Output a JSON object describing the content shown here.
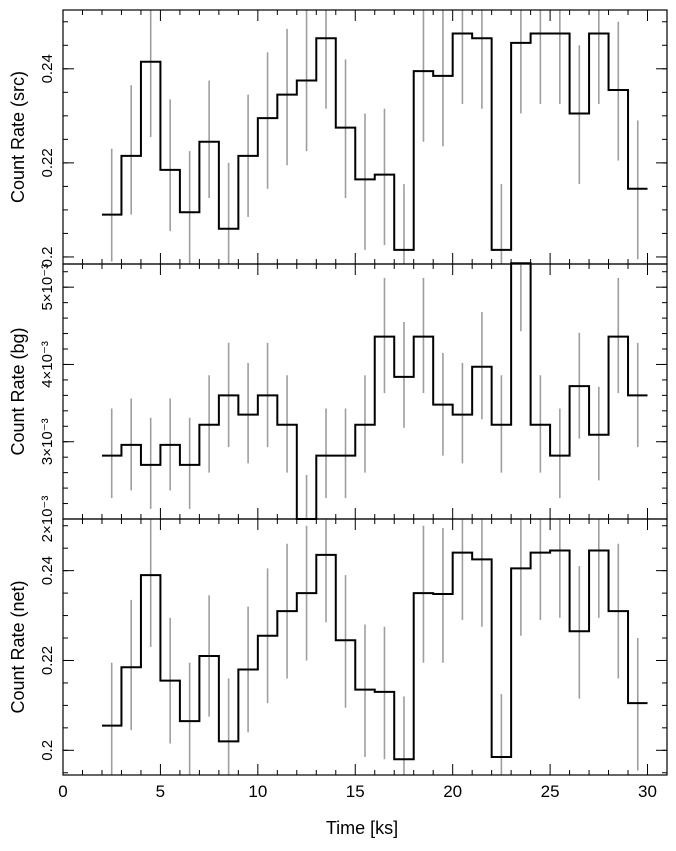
{
  "chart_data": {
    "type": "line",
    "x_axis": {
      "label": "Time [ks]",
      "range": [
        0,
        31
      ],
      "ticks": [
        0,
        5,
        10,
        15,
        20,
        25,
        30
      ],
      "minor_step": 1
    },
    "panels": [
      {
        "name": "src",
        "ylabel": "Count Rate (src)",
        "ylim": [
          0.1985,
          0.2525
        ],
        "ticks": [
          {
            "value": 0.2,
            "label": "0.2"
          },
          {
            "value": 0.22,
            "label": "0.22"
          },
          {
            "value": 0.24,
            "label": "0.24"
          }
        ],
        "minor_step": 0.005,
        "bins": [
          {
            "x0": 2.0,
            "x1": 3.0,
            "y": 0.209,
            "lo": 0.199,
            "hi": 0.223
          },
          {
            "x0": 3.0,
            "x1": 4.0,
            "y": 0.2215,
            "lo": 0.209,
            "hi": 0.2365
          },
          {
            "x0": 4.0,
            "x1": 5.0,
            "y": 0.2415,
            "lo": 0.2255,
            "hi": 0.2525
          },
          {
            "x0": 5.0,
            "x1": 6.0,
            "y": 0.2185,
            "lo": 0.2055,
            "hi": 0.2335
          },
          {
            "x0": 6.0,
            "x1": 7.0,
            "y": 0.2095,
            "lo": 0.1985,
            "hi": 0.2225
          },
          {
            "x0": 7.0,
            "x1": 8.0,
            "y": 0.2245,
            "lo": 0.2125,
            "hi": 0.2375
          },
          {
            "x0": 8.0,
            "x1": 9.0,
            "y": 0.206,
            "lo": 0.1985,
            "hi": 0.22
          },
          {
            "x0": 9.0,
            "x1": 10.0,
            "y": 0.2215,
            "lo": 0.2085,
            "hi": 0.2345
          },
          {
            "x0": 10.0,
            "x1": 11.0,
            "y": 0.2295,
            "lo": 0.2145,
            "hi": 0.2435
          },
          {
            "x0": 11.0,
            "x1": 12.0,
            "y": 0.2345,
            "lo": 0.2195,
            "hi": 0.2485
          },
          {
            "x0": 12.0,
            "x1": 13.0,
            "y": 0.2375,
            "lo": 0.2225,
            "hi": 0.2525
          },
          {
            "x0": 13.0,
            "x1": 14.0,
            "y": 0.2465,
            "lo": 0.2315,
            "hi": 0.2525
          },
          {
            "x0": 14.0,
            "x1": 15.0,
            "y": 0.2275,
            "lo": 0.2125,
            "hi": 0.242
          },
          {
            "x0": 15.0,
            "x1": 16.0,
            "y": 0.2165,
            "lo": 0.2015,
            "hi": 0.2305
          },
          {
            "x0": 16.0,
            "x1": 17.0,
            "y": 0.2175,
            "lo": 0.2025,
            "hi": 0.2315
          },
          {
            "x0": 17.0,
            "x1": 18.0,
            "y": 0.2015,
            "lo": 0.1985,
            "hi": 0.2155
          },
          {
            "x0": 18.0,
            "x1": 19.0,
            "y": 0.2395,
            "lo": 0.2245,
            "hi": 0.2525
          },
          {
            "x0": 19.0,
            "x1": 20.0,
            "y": 0.2385,
            "lo": 0.2235,
            "hi": 0.2525
          },
          {
            "x0": 20.0,
            "x1": 21.0,
            "y": 0.2475,
            "lo": 0.2325,
            "hi": 0.2525
          },
          {
            "x0": 21.0,
            "x1": 22.0,
            "y": 0.2465,
            "lo": 0.2315,
            "hi": 0.2525
          },
          {
            "x0": 22.0,
            "x1": 23.0,
            "y": 0.2015,
            "lo": 0.1985,
            "hi": 0.2155
          },
          {
            "x0": 23.0,
            "x1": 24.0,
            "y": 0.2455,
            "lo": 0.2305,
            "hi": 0.2525
          },
          {
            "x0": 24.0,
            "x1": 25.0,
            "y": 0.2475,
            "lo": 0.2325,
            "hi": 0.2525
          },
          {
            "x0": 25.0,
            "x1": 26.0,
            "y": 0.2475,
            "lo": 0.2325,
            "hi": 0.2525
          },
          {
            "x0": 26.0,
            "x1": 27.0,
            "y": 0.2305,
            "lo": 0.2155,
            "hi": 0.245
          },
          {
            "x0": 27.0,
            "x1": 28.0,
            "y": 0.2475,
            "lo": 0.2325,
            "hi": 0.2525
          },
          {
            "x0": 28.0,
            "x1": 29.0,
            "y": 0.2355,
            "lo": 0.2205,
            "hi": 0.25
          },
          {
            "x0": 29.0,
            "x1": 30.0,
            "y": 0.2145,
            "lo": 0.1995,
            "hi": 0.229
          }
        ]
      },
      {
        "name": "bg",
        "ylabel": "Count Rate (bg)",
        "ylim": [
          0.002,
          0.0053
        ],
        "ticks": [
          {
            "value": 0.002,
            "label": "2×10⁻³"
          },
          {
            "value": 0.003,
            "label": "3×10⁻³"
          },
          {
            "value": 0.004,
            "label": "4×10⁻³"
          },
          {
            "value": 0.005,
            "label": "5×10⁻³"
          }
        ],
        "minor_step": 0.0002,
        "bins": [
          {
            "x0": 2.0,
            "x1": 3.0,
            "y": 0.00282,
            "lo": 0.00227,
            "hi": 0.00343
          },
          {
            "x0": 3.0,
            "x1": 4.0,
            "y": 0.00296,
            "lo": 0.00237,
            "hi": 0.00356
          },
          {
            "x0": 4.0,
            "x1": 5.0,
            "y": 0.0027,
            "lo": 0.00213,
            "hi": 0.00331
          },
          {
            "x0": 5.0,
            "x1": 6.0,
            "y": 0.00296,
            "lo": 0.00237,
            "hi": 0.00356
          },
          {
            "x0": 6.0,
            "x1": 7.0,
            "y": 0.0027,
            "lo": 0.00213,
            "hi": 0.00331
          },
          {
            "x0": 7.0,
            "x1": 8.0,
            "y": 0.00322,
            "lo": 0.0026,
            "hi": 0.00386
          },
          {
            "x0": 8.0,
            "x1": 9.0,
            "y": 0.0036,
            "lo": 0.00293,
            "hi": 0.00428
          },
          {
            "x0": 9.0,
            "x1": 10.0,
            "y": 0.00335,
            "lo": 0.00272,
            "hi": 0.00402
          },
          {
            "x0": 10.0,
            "x1": 11.0,
            "y": 0.0036,
            "lo": 0.00293,
            "hi": 0.00428
          },
          {
            "x0": 11.0,
            "x1": 12.0,
            "y": 0.00322,
            "lo": 0.0026,
            "hi": 0.00386
          },
          {
            "x0": 12.0,
            "x1": 13.0,
            "y": 0.002,
            "lo": 0.002,
            "hi": 0.00257
          },
          {
            "x0": 13.0,
            "x1": 14.0,
            "y": 0.00282,
            "lo": 0.00227,
            "hi": 0.00343
          },
          {
            "x0": 14.0,
            "x1": 15.0,
            "y": 0.00282,
            "lo": 0.00227,
            "hi": 0.00343
          },
          {
            "x0": 15.0,
            "x1": 16.0,
            "y": 0.00322,
            "lo": 0.0026,
            "hi": 0.00386
          },
          {
            "x0": 16.0,
            "x1": 17.0,
            "y": 0.00436,
            "lo": 0.00363,
            "hi": 0.00512
          },
          {
            "x0": 17.0,
            "x1": 18.0,
            "y": 0.00384,
            "lo": 0.00318,
            "hi": 0.00455
          },
          {
            "x0": 18.0,
            "x1": 19.0,
            "y": 0.00436,
            "lo": 0.00363,
            "hi": 0.00512
          },
          {
            "x0": 19.0,
            "x1": 20.0,
            "y": 0.00348,
            "lo": 0.00282,
            "hi": 0.00415
          },
          {
            "x0": 20.0,
            "x1": 21.0,
            "y": 0.00335,
            "lo": 0.00272,
            "hi": 0.00402
          },
          {
            "x0": 21.0,
            "x1": 22.0,
            "y": 0.00397,
            "lo": 0.00329,
            "hi": 0.00468
          },
          {
            "x0": 22.0,
            "x1": 23.0,
            "y": 0.00322,
            "lo": 0.0026,
            "hi": 0.00386
          },
          {
            "x0": 23.0,
            "x1": 24.0,
            "y": 0.00531,
            "lo": 0.00443,
            "hi": 0.00531
          },
          {
            "x0": 24.0,
            "x1": 25.0,
            "y": 0.00322,
            "lo": 0.0026,
            "hi": 0.00386
          },
          {
            "x0": 25.0,
            "x1": 26.0,
            "y": 0.00282,
            "lo": 0.00227,
            "hi": 0.00343
          },
          {
            "x0": 26.0,
            "x1": 27.0,
            "y": 0.00372,
            "lo": 0.00304,
            "hi": 0.00441
          },
          {
            "x0": 27.0,
            "x1": 28.0,
            "y": 0.00309,
            "lo": 0.0025,
            "hi": 0.00371
          },
          {
            "x0": 28.0,
            "x1": 29.0,
            "y": 0.00436,
            "lo": 0.00363,
            "hi": 0.00512
          },
          {
            "x0": 29.0,
            "x1": 30.0,
            "y": 0.0036,
            "lo": 0.00293,
            "hi": 0.00428
          }
        ]
      },
      {
        "name": "net",
        "ylabel": "Count Rate (net)",
        "ylim": [
          0.1945,
          0.2515
        ],
        "ticks": [
          {
            "value": 0.2,
            "label": "0.2"
          },
          {
            "value": 0.22,
            "label": "0.22"
          },
          {
            "value": 0.24,
            "label": "0.24"
          }
        ],
        "minor_step": 0.005,
        "bins": [
          {
            "x0": 2.0,
            "x1": 3.0,
            "y": 0.2055,
            "lo": 0.1945,
            "hi": 0.2195
          },
          {
            "x0": 3.0,
            "x1": 4.0,
            "y": 0.2185,
            "lo": 0.2045,
            "hi": 0.2335
          },
          {
            "x0": 4.0,
            "x1": 5.0,
            "y": 0.239,
            "lo": 0.223,
            "hi": 0.2515
          },
          {
            "x0": 5.0,
            "x1": 6.0,
            "y": 0.2155,
            "lo": 0.2015,
            "hi": 0.2295
          },
          {
            "x0": 6.0,
            "x1": 7.0,
            "y": 0.2065,
            "lo": 0.1945,
            "hi": 0.2195
          },
          {
            "x0": 7.0,
            "x1": 8.0,
            "y": 0.221,
            "lo": 0.2075,
            "hi": 0.2345
          },
          {
            "x0": 8.0,
            "x1": 9.0,
            "y": 0.202,
            "lo": 0.1945,
            "hi": 0.216
          },
          {
            "x0": 9.0,
            "x1": 10.0,
            "y": 0.218,
            "lo": 0.204,
            "hi": 0.232
          },
          {
            "x0": 10.0,
            "x1": 11.0,
            "y": 0.2255,
            "lo": 0.2105,
            "hi": 0.2405
          },
          {
            "x0": 11.0,
            "x1": 12.0,
            "y": 0.231,
            "lo": 0.216,
            "hi": 0.246
          },
          {
            "x0": 12.0,
            "x1": 13.0,
            "y": 0.235,
            "lo": 0.22,
            "hi": 0.25
          },
          {
            "x0": 13.0,
            "x1": 14.0,
            "y": 0.2435,
            "lo": 0.2285,
            "hi": 0.2515
          },
          {
            "x0": 14.0,
            "x1": 15.0,
            "y": 0.2245,
            "lo": 0.2095,
            "hi": 0.239
          },
          {
            "x0": 15.0,
            "x1": 16.0,
            "y": 0.2135,
            "lo": 0.1985,
            "hi": 0.228
          },
          {
            "x0": 16.0,
            "x1": 17.0,
            "y": 0.213,
            "lo": 0.198,
            "hi": 0.2275
          },
          {
            "x0": 17.0,
            "x1": 18.0,
            "y": 0.198,
            "lo": 0.1945,
            "hi": 0.212
          },
          {
            "x0": 18.0,
            "x1": 19.0,
            "y": 0.235,
            "lo": 0.2195,
            "hi": 0.25
          },
          {
            "x0": 19.0,
            "x1": 20.0,
            "y": 0.2348,
            "lo": 0.2195,
            "hi": 0.2495
          },
          {
            "x0": 20.0,
            "x1": 21.0,
            "y": 0.244,
            "lo": 0.229,
            "hi": 0.2515
          },
          {
            "x0": 21.0,
            "x1": 22.0,
            "y": 0.2425,
            "lo": 0.2275,
            "hi": 0.2515
          },
          {
            "x0": 22.0,
            "x1": 23.0,
            "y": 0.1985,
            "lo": 0.1945,
            "hi": 0.2125
          },
          {
            "x0": 23.0,
            "x1": 24.0,
            "y": 0.2405,
            "lo": 0.2255,
            "hi": 0.2515
          },
          {
            "x0": 24.0,
            "x1": 25.0,
            "y": 0.244,
            "lo": 0.229,
            "hi": 0.2515
          },
          {
            "x0": 25.0,
            "x1": 26.0,
            "y": 0.2445,
            "lo": 0.2295,
            "hi": 0.2515
          },
          {
            "x0": 26.0,
            "x1": 27.0,
            "y": 0.2265,
            "lo": 0.2115,
            "hi": 0.241
          },
          {
            "x0": 27.0,
            "x1": 28.0,
            "y": 0.2445,
            "lo": 0.2295,
            "hi": 0.2515
          },
          {
            "x0": 28.0,
            "x1": 29.0,
            "y": 0.231,
            "lo": 0.216,
            "hi": 0.246
          },
          {
            "x0": 29.0,
            "x1": 30.0,
            "y": 0.2105,
            "lo": 0.1955,
            "hi": 0.225
          }
        ]
      }
    ]
  }
}
